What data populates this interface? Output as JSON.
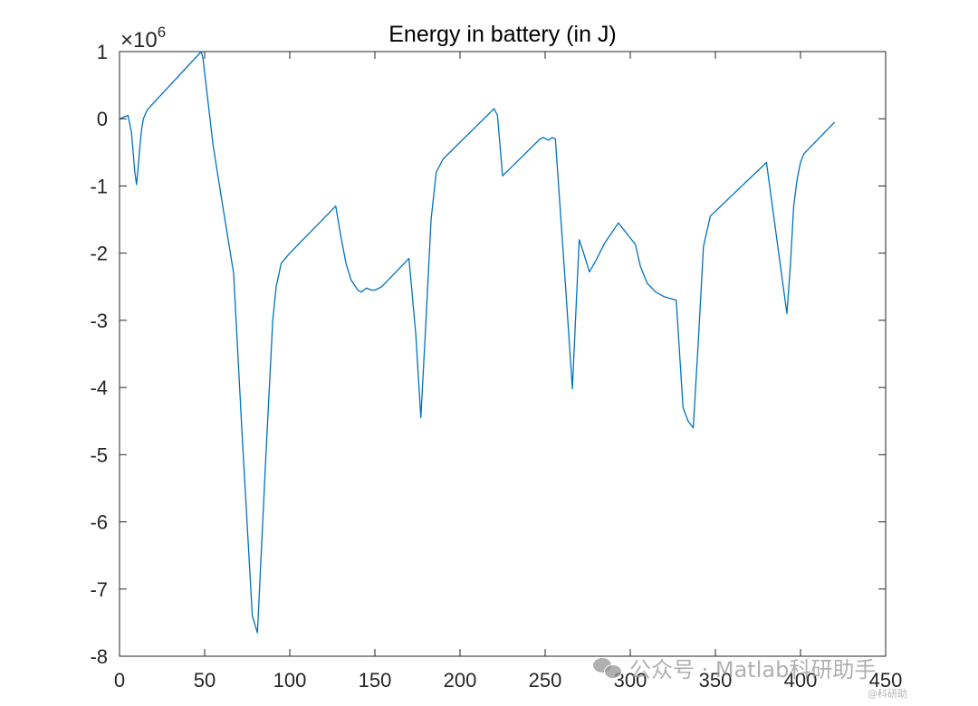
{
  "chart_data": {
    "type": "line",
    "title": "Energy in battery (in J)",
    "xlabel": "",
    "ylabel": "",
    "xlim": [
      0,
      450
    ],
    "ylim": [
      -8,
      1
    ],
    "xticks": [
      0,
      50,
      100,
      150,
      200,
      250,
      300,
      350,
      400,
      450
    ],
    "yticks": [
      1,
      0,
      -1,
      -2,
      -3,
      -4,
      -5,
      -6,
      -7,
      -8
    ],
    "xtick_labels": [
      "0",
      "50",
      "100",
      "150",
      "200",
      "250",
      "300",
      "350",
      "400",
      "450"
    ],
    "ytick_labels": [
      "1",
      "0",
      "-1",
      "-2",
      "-3",
      "-4",
      "-5",
      "-6",
      "-7",
      "-8"
    ],
    "y_exponent_base": "×10",
    "y_exponent_power": "6",
    "y_scale_factor": 1000000,
    "grid": false,
    "series_color": "#0072BD",
    "series": [
      {
        "name": "",
        "x": [
          0,
          2,
          5,
          7,
          9,
          10,
          11,
          12,
          13,
          14,
          16,
          18,
          48,
          49,
          55,
          60,
          67,
          72,
          78,
          81,
          86,
          90,
          92,
          95,
          100,
          127,
          130,
          133,
          136,
          140,
          142,
          145,
          148,
          150,
          154,
          170,
          174,
          177,
          180,
          183,
          186,
          190,
          220,
          222,
          225,
          247,
          249,
          252,
          254,
          256,
          262,
          266,
          268,
          270,
          272,
          276,
          280,
          285,
          293,
          303,
          306,
          310,
          315,
          320,
          327,
          331,
          334,
          337,
          340,
          343,
          347,
          380,
          392,
          394,
          396,
          398,
          400,
          402,
          420
        ],
        "y": [
          0.0,
          0.02,
          0.05,
          -0.2,
          -0.8,
          -0.98,
          -0.7,
          -0.4,
          -0.15,
          0.0,
          0.12,
          0.18,
          1.0,
          0.9,
          -0.4,
          -1.2,
          -2.3,
          -4.7,
          -7.4,
          -7.65,
          -5.0,
          -3.0,
          -2.5,
          -2.15,
          -2.0,
          -1.3,
          -1.75,
          -2.15,
          -2.4,
          -2.55,
          -2.58,
          -2.52,
          -2.55,
          -2.55,
          -2.5,
          -2.08,
          -3.2,
          -4.45,
          -3.0,
          -1.5,
          -0.8,
          -0.6,
          0.15,
          0.05,
          -0.85,
          -0.3,
          -0.28,
          -0.32,
          -0.28,
          -0.3,
          -2.5,
          -4.02,
          -2.9,
          -1.8,
          -1.95,
          -2.28,
          -2.1,
          -1.85,
          -1.55,
          -1.87,
          -2.2,
          -2.45,
          -2.58,
          -2.65,
          -2.7,
          -4.3,
          -4.5,
          -4.6,
          -3.3,
          -1.9,
          -1.45,
          -0.65,
          -2.9,
          -2.2,
          -1.3,
          -0.9,
          -0.65,
          -0.52,
          -0.05
        ]
      }
    ]
  },
  "watermark": {
    "text": "公众号 · Matlab科研助手",
    "small_text": "@科研助"
  }
}
